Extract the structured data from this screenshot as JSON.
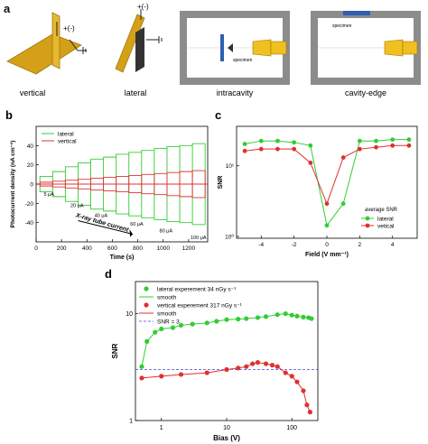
{
  "panel_a": {
    "letter": "a",
    "captions": [
      "vertical",
      "lateral",
      "intracavity",
      "cavity-edge"
    ],
    "labels": {
      "bias_vertical": "+(-)",
      "bias_lateral": "+(-)",
      "specimen_intracavity": "specimen",
      "specimen_edge": "specimen"
    },
    "colors": {
      "gold": "#d4a017",
      "gray": "#8c8c8c",
      "blue": "#2f5fb3",
      "tube": "#f0c020"
    }
  },
  "chart_data": [
    {
      "panel": "b",
      "type": "line",
      "xlabel": "Time (s)",
      "ylabel": "Photocurrent density (nA cm⁻²)",
      "xlim": [
        0,
        1350
      ],
      "ylim": [
        -60,
        60
      ],
      "xticks": [
        0,
        200,
        400,
        600,
        800,
        1000,
        1200
      ],
      "yticks": [
        -40,
        -20,
        0,
        20,
        40
      ],
      "series": [
        {
          "name": "lateral",
          "color": "#33cc33",
          "pulses": [
            [
              30,
              130,
              8
            ],
            [
              130,
              230,
              13
            ],
            [
              230,
              330,
              18
            ],
            [
              330,
              430,
              22
            ],
            [
              430,
              530,
              26
            ],
            [
              530,
              630,
              28
            ],
            [
              630,
              730,
              31
            ],
            [
              730,
              830,
              33
            ],
            [
              830,
              930,
              35
            ],
            [
              930,
              1030,
              37
            ],
            [
              1030,
              1130,
              39
            ],
            [
              1130,
              1230,
              40
            ],
            [
              1230,
              1330,
              42
            ]
          ]
        },
        {
          "name": "vertical",
          "color": "#e03030",
          "pulses": [
            [
              30,
              130,
              2
            ],
            [
              130,
              230,
              3
            ],
            [
              230,
              330,
              4
            ],
            [
              330,
              430,
              5
            ],
            [
              430,
              530,
              6
            ],
            [
              530,
              630,
              7
            ],
            [
              630,
              730,
              8
            ],
            [
              730,
              830,
              9
            ],
            [
              830,
              930,
              10
            ],
            [
              930,
              1030,
              11
            ],
            [
              1030,
              1130,
              12
            ],
            [
              1130,
              1230,
              13
            ],
            [
              1230,
              1330,
              14
            ]
          ]
        }
      ],
      "annotations": [
        {
          "text": "5 μA",
          "x": 60,
          "y": -12
        },
        {
          "text": "20 μA",
          "x": 270,
          "y": -24
        },
        {
          "text": "40 μA",
          "x": 460,
          "y": -34
        },
        {
          "text": "60 μA",
          "x": 740,
          "y": -43
        },
        {
          "text": "80 μA",
          "x": 970,
          "y": -50
        },
        {
          "text": "100 μA",
          "x": 1215,
          "y": -57
        },
        {
          "text": "X-ray tube current",
          "x": 310,
          "y": -34
        }
      ],
      "legend": "top-left"
    },
    {
      "panel": "c",
      "type": "scatter",
      "xlabel": "Field (V mm⁻¹)",
      "ylabel": "SNR",
      "xlim": [
        -5.5,
        5.5
      ],
      "ylim_log10": [
        0.8,
        1.45
      ],
      "xticks": [
        -4,
        -2,
        0,
        2,
        4
      ],
      "yticks": [
        "10¹",
        "10⁰"
      ],
      "legend_title": "average SNR",
      "series": [
        {
          "name": "lateral",
          "color": "#33cc33",
          "x": [
            -5,
            -4,
            -3,
            -2,
            -1,
            0,
            1,
            2,
            3,
            4,
            5
          ],
          "y": [
            20,
            22,
            22,
            21,
            19,
            1.5,
            3,
            22,
            22,
            23,
            23
          ]
        },
        {
          "name": "vetical",
          "color": "#e03030",
          "x": [
            -5,
            -4,
            -3,
            -2,
            -1,
            0,
            1,
            2,
            3,
            4,
            5
          ],
          "y": [
            16,
            17,
            17,
            17,
            11,
            3,
            13,
            17,
            18,
            19,
            19
          ]
        }
      ],
      "legend": "bottom-right"
    },
    {
      "panel": "d",
      "type": "scatter",
      "xlabel": "Bias (V)",
      "ylabel": "SNR",
      "xscale": "log",
      "yscale": "log",
      "xlim": [
        0.4,
        250
      ],
      "ylim": [
        1,
        20
      ],
      "xticks": [
        1,
        10,
        100
      ],
      "yticks": [
        1,
        10
      ],
      "series": [
        {
          "name": "lateral experement 34 nGy s⁻¹",
          "color": "#33cc33",
          "x": [
            0.5,
            0.6,
            0.8,
            1.0,
            1.5,
            2,
            3,
            5,
            7,
            10,
            15,
            20,
            30,
            40,
            60,
            80,
            100,
            120,
            150,
            180,
            200
          ],
          "y": [
            3.2,
            5.5,
            6.7,
            7.2,
            7.4,
            7.8,
            8.0,
            8.2,
            8.5,
            8.8,
            8.9,
            9.0,
            9.2,
            9.4,
            9.8,
            10.0,
            9.7,
            9.5,
            9.3,
            9.2,
            9.0
          ]
        },
        {
          "name": "vertical experement 317 nGy s⁻¹",
          "color": "#e03030",
          "x": [
            0.5,
            1,
            2,
            5,
            10,
            15,
            20,
            25,
            30,
            40,
            50,
            60,
            80,
            100,
            120,
            150,
            170,
            190
          ],
          "y": [
            2.5,
            2.6,
            2.7,
            2.8,
            3.0,
            3.1,
            3.2,
            3.4,
            3.5,
            3.4,
            3.3,
            3.2,
            2.8,
            2.6,
            2.3,
            1.9,
            1.4,
            1.2
          ]
        }
      ],
      "legend_entries": [
        "lateral experement 34 nGy s⁻¹",
        "smooth",
        "vertical experement 317 nGy s⁻¹",
        "smooth",
        "SNR = 3"
      ],
      "reference_line": {
        "label": "SNR = 3",
        "y": 3,
        "color": "#4444dd"
      },
      "legend": "top-left"
    }
  ],
  "panel_letters": {
    "b": "b",
    "c": "c",
    "d": "d"
  }
}
